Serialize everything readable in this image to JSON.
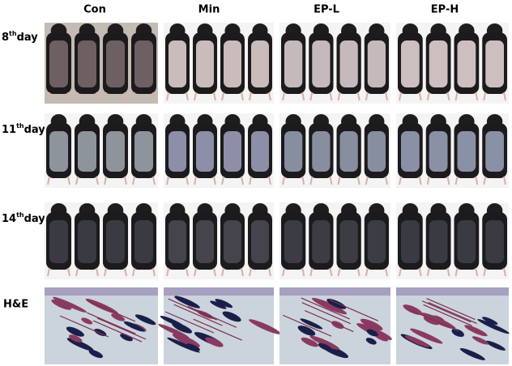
{
  "columns": [
    "Con",
    "Min",
    "EP-L",
    "EP-H"
  ],
  "rows": [
    {
      "number": "8",
      "suffix": "th",
      "unit": "day"
    },
    {
      "number": "11",
      "suffix": "th",
      "unit": "day"
    },
    {
      "number": "14",
      "suffix": "th",
      "unit": "day"
    },
    {
      "label": "H&E"
    }
  ]
}
